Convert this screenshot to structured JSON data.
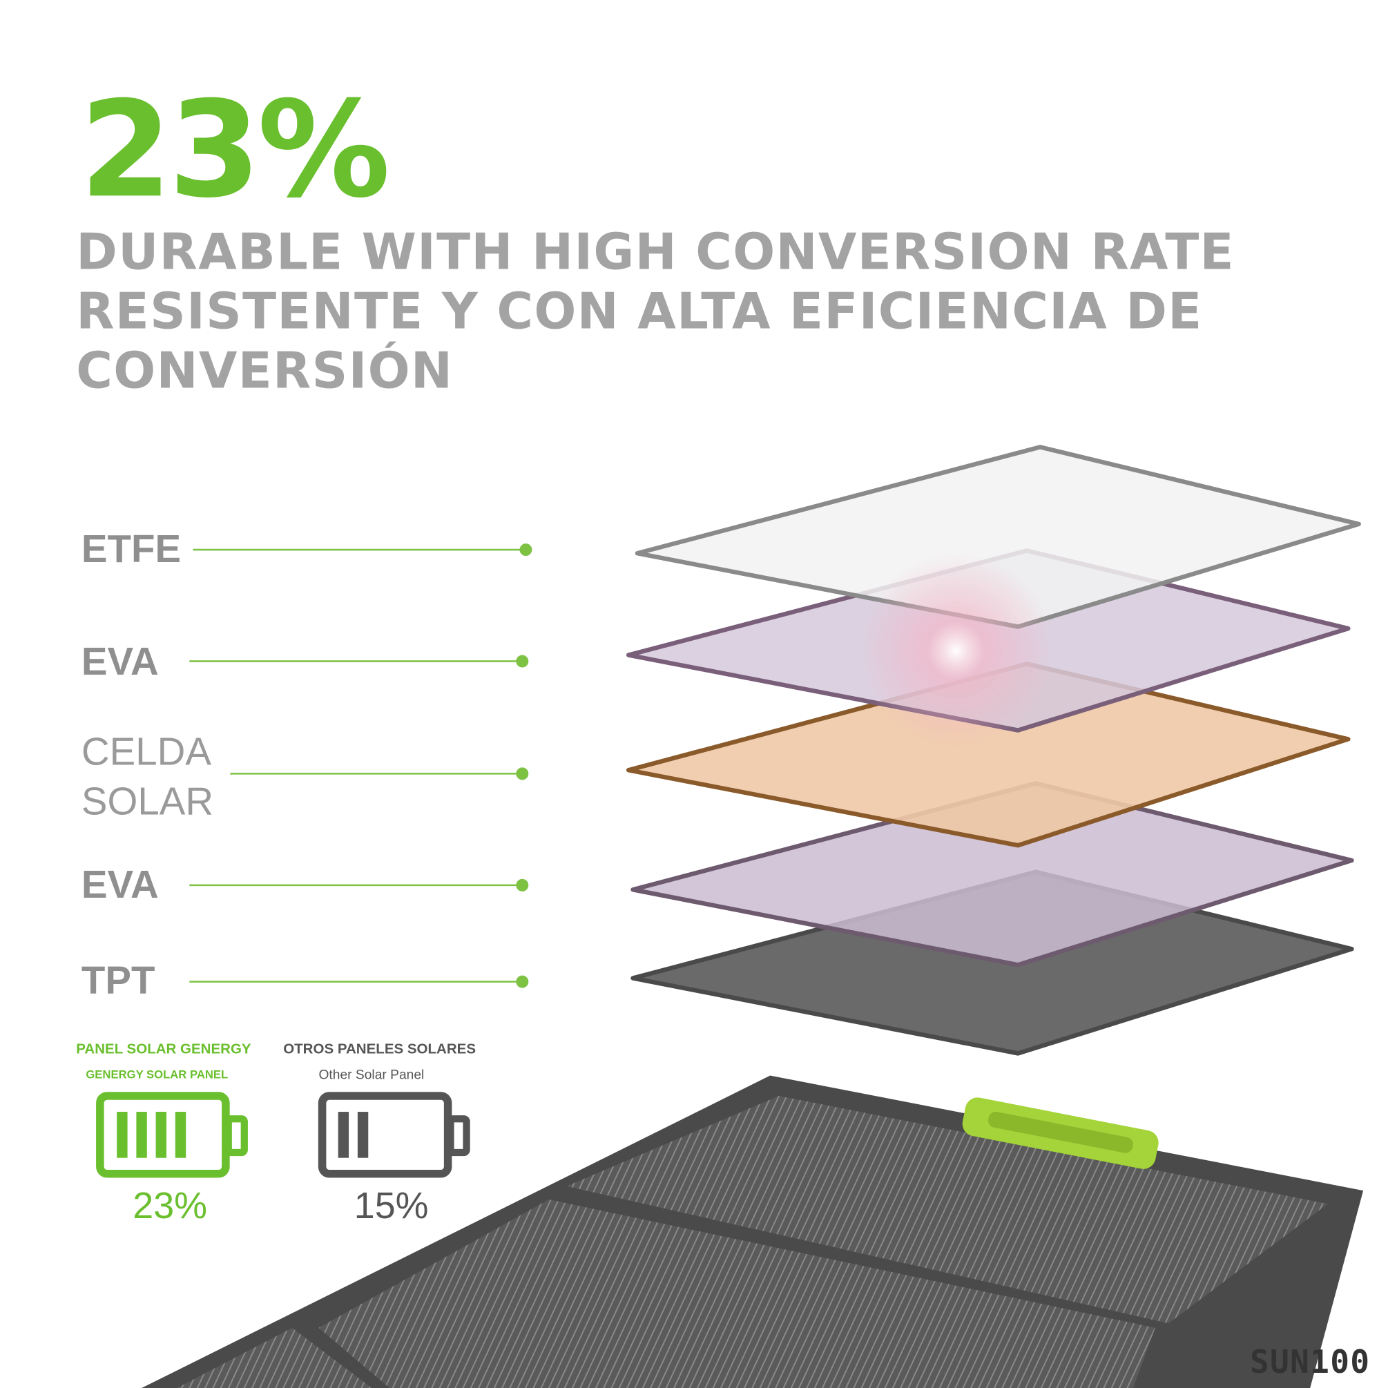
{
  "headline": {
    "value_text": "23%",
    "lines": [
      "DURABLE WITH HIGH CONVERSION RATE",
      "RESISTENTE Y CON ALTA EFICIENCIA DE CONVERSIÓN"
    ]
  },
  "layers": [
    "ETFE",
    "EVA",
    "CELDA SOLAR",
    "EVA",
    "TPT"
  ],
  "comparison": {
    "genergy": {
      "title": "PANEL SOLAR GENERGY",
      "subtitle": "GENERGY SOLAR PANEL",
      "value_text": "23%"
    },
    "others": {
      "title": "OTROS PANELES SOLARES",
      "subtitle": "Other Solar Panel",
      "value_text": "15%"
    }
  },
  "brand": "SUN100"
}
